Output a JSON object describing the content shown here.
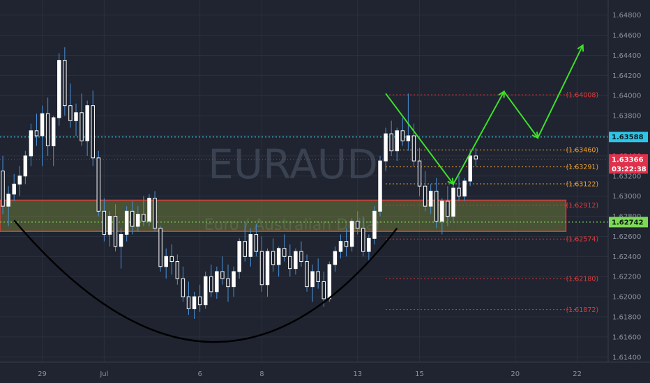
{
  "chart_data": {
    "type": "candlestick",
    "watermark": {
      "symbol": "EURAUD",
      "name": "Euro / Australian Dollar"
    },
    "y_axis": {
      "range": [
        1.6135,
        1.6495
      ],
      "ticks": [
        "1.64800",
        "1.64600",
        "1.64400",
        "1.64200",
        "1.64000",
        "1.63800",
        "1.63600",
        "1.63400",
        "1.63200",
        "1.63000",
        "1.62800",
        "1.62600",
        "1.62400",
        "1.62200",
        "1.62000",
        "1.61800",
        "1.61600",
        "1.61400"
      ]
    },
    "x_axis": {
      "ticks": [
        {
          "label": "29",
          "bar": 7
        },
        {
          "label": "Jul",
          "bar": 18
        },
        {
          "label": "6",
          "bar": 35
        },
        {
          "label": "8",
          "bar": 46
        },
        {
          "label": "13",
          "bar": 63
        },
        {
          "label": "15",
          "bar": 74
        },
        {
          "label": "20",
          "bar": 91
        },
        {
          "label": "22",
          "bar": 102
        }
      ]
    },
    "bars_total_slots": 108,
    "candles": [
      [
        1.6325,
        1.634,
        1.6282,
        1.629
      ],
      [
        1.629,
        1.631,
        1.627,
        1.6302
      ],
      [
        1.6302,
        1.6322,
        1.6295,
        1.6312
      ],
      [
        1.6312,
        1.633,
        1.63,
        1.632
      ],
      [
        1.632,
        1.6345,
        1.6312,
        1.634
      ],
      [
        1.634,
        1.6372,
        1.633,
        1.6365
      ],
      [
        1.6365,
        1.6382,
        1.635,
        1.636
      ],
      [
        1.636,
        1.639,
        1.633,
        1.6382
      ],
      [
        1.6382,
        1.6398,
        1.634,
        1.635
      ],
      [
        1.635,
        1.638,
        1.633,
        1.6378
      ],
      [
        1.6378,
        1.6442,
        1.637,
        1.6435
      ],
      [
        1.6435,
        1.6448,
        1.638,
        1.639
      ],
      [
        1.639,
        1.6412,
        1.6368,
        1.6375
      ],
      [
        1.6375,
        1.6392,
        1.636,
        1.6383
      ],
      [
        1.6383,
        1.6402,
        1.635,
        1.6355
      ],
      [
        1.6355,
        1.6395,
        1.634,
        1.639
      ],
      [
        1.639,
        1.6405,
        1.633,
        1.6338
      ],
      [
        1.6338,
        1.6345,
        1.628,
        1.6285
      ],
      [
        1.6285,
        1.6298,
        1.6255,
        1.6262
      ],
      [
        1.6262,
        1.6285,
        1.625,
        1.628
      ],
      [
        1.628,
        1.6292,
        1.6245,
        1.625
      ],
      [
        1.625,
        1.6268,
        1.6228,
        1.6262
      ],
      [
        1.6262,
        1.629,
        1.6255,
        1.6285
      ],
      [
        1.6285,
        1.6295,
        1.6262,
        1.627
      ],
      [
        1.627,
        1.629,
        1.6265,
        1.6282
      ],
      [
        1.6282,
        1.63,
        1.627,
        1.6275
      ],
      [
        1.6275,
        1.6302,
        1.627,
        1.6298
      ],
      [
        1.6298,
        1.6305,
        1.6265,
        1.6268
      ],
      [
        1.6268,
        1.627,
        1.6225,
        1.623
      ],
      [
        1.623,
        1.6248,
        1.6218,
        1.624
      ],
      [
        1.624,
        1.6252,
        1.6222,
        1.6235
      ],
      [
        1.6235,
        1.6242,
        1.6212,
        1.6218
      ],
      [
        1.6218,
        1.623,
        1.6195,
        1.62
      ],
      [
        1.62,
        1.6215,
        1.6182,
        1.6188
      ],
      [
        1.6188,
        1.6205,
        1.6178,
        1.62
      ],
      [
        1.62,
        1.6212,
        1.6185,
        1.6192
      ],
      [
        1.6192,
        1.6225,
        1.6188,
        1.622
      ],
      [
        1.622,
        1.6232,
        1.62,
        1.6205
      ],
      [
        1.6205,
        1.623,
        1.6198,
        1.6225
      ],
      [
        1.6225,
        1.624,
        1.6212,
        1.6218
      ],
      [
        1.6218,
        1.6232,
        1.6195,
        1.621
      ],
      [
        1.621,
        1.623,
        1.62,
        1.6225
      ],
      [
        1.6225,
        1.6258,
        1.6218,
        1.6255
      ],
      [
        1.6255,
        1.6275,
        1.6235,
        1.624
      ],
      [
        1.624,
        1.6268,
        1.623,
        1.6262
      ],
      [
        1.6262,
        1.6272,
        1.624,
        1.6245
      ],
      [
        1.6245,
        1.626,
        1.6205,
        1.6212
      ],
      [
        1.6212,
        1.6248,
        1.62,
        1.6245
      ],
      [
        1.6245,
        1.6258,
        1.6225,
        1.6232
      ],
      [
        1.6232,
        1.625,
        1.622,
        1.6248
      ],
      [
        1.6248,
        1.6262,
        1.6235,
        1.624
      ],
      [
        1.624,
        1.6252,
        1.622,
        1.6228
      ],
      [
        1.6228,
        1.6248,
        1.6222,
        1.6245
      ],
      [
        1.6245,
        1.6255,
        1.623,
        1.6235
      ],
      [
        1.6235,
        1.6242,
        1.6205,
        1.621
      ],
      [
        1.621,
        1.6232,
        1.6195,
        1.6225
      ],
      [
        1.6225,
        1.6238,
        1.6208,
        1.6215
      ],
      [
        1.6215,
        1.6225,
        1.619,
        1.6198
      ],
      [
        1.6198,
        1.6235,
        1.6195,
        1.6232
      ],
      [
        1.6232,
        1.625,
        1.6225,
        1.6245
      ],
      [
        1.6245,
        1.6262,
        1.6238,
        1.6255
      ],
      [
        1.6255,
        1.6268,
        1.624,
        1.625
      ],
      [
        1.625,
        1.6278,
        1.6245,
        1.6275
      ],
      [
        1.6275,
        1.6285,
        1.6262,
        1.6268
      ],
      [
        1.6268,
        1.628,
        1.624,
        1.6245
      ],
      [
        1.6245,
        1.6262,
        1.6235,
        1.6258
      ],
      [
        1.6258,
        1.629,
        1.6252,
        1.6285
      ],
      [
        1.6285,
        1.634,
        1.628,
        1.6335
      ],
      [
        1.6335,
        1.6368,
        1.6325,
        1.6362
      ],
      [
        1.6362,
        1.6375,
        1.634,
        1.6345
      ],
      [
        1.6345,
        1.6368,
        1.6335,
        1.6365
      ],
      [
        1.6365,
        1.6378,
        1.635,
        1.6355
      ],
      [
        1.6355,
        1.6402,
        1.6345,
        1.636
      ],
      [
        1.636,
        1.6372,
        1.633,
        1.6335
      ],
      [
        1.6335,
        1.6348,
        1.63,
        1.631
      ],
      [
        1.631,
        1.6325,
        1.6285,
        1.629
      ],
      [
        1.629,
        1.6312,
        1.6282,
        1.6305
      ],
      [
        1.6305,
        1.6318,
        1.6268,
        1.6275
      ],
      [
        1.6275,
        1.6298,
        1.6262,
        1.6295
      ],
      [
        1.6295,
        1.631,
        1.627,
        1.628
      ],
      [
        1.628,
        1.6312,
        1.6275,
        1.6308
      ],
      [
        1.6308,
        1.632,
        1.6295,
        1.63
      ],
      [
        1.63,
        1.6318,
        1.6295,
        1.6315
      ],
      [
        1.6315,
        1.6345,
        1.631,
        1.634
      ],
      [
        1.634,
        1.6348,
        1.633,
        1.6337
      ]
    ],
    "levels": [
      {
        "label": "1.64008",
        "price": 1.64008,
        "color": "#e03b3b"
      },
      {
        "label": "1.63460",
        "price": 1.6346,
        "color": "#f0a030"
      },
      {
        "label": "1.63291",
        "price": 1.63291,
        "color": "#f0a030"
      },
      {
        "label": "1.63122",
        "price": 1.63122,
        "color": "#f0a030"
      },
      {
        "label": "1.62912",
        "price": 1.62912,
        "color": "#e03b3b"
      },
      {
        "label": "1.62574",
        "price": 1.62574,
        "color": "#e03b3b"
      },
      {
        "label": "1.62180",
        "price": 1.6218,
        "color": "#e03b3b"
      },
      {
        "label": "1.61872",
        "price": 1.61872,
        "color": "#e03b3b"
      }
    ],
    "resistance_line": {
      "price": 1.63588,
      "label": "1.63588",
      "color": "#2ec4e6"
    },
    "support_line": {
      "price": 1.62742,
      "label": "1.62742",
      "color": "#7ed957"
    },
    "current_price": {
      "price": 1.63366,
      "label": "1.63366",
      "timer": "03:22:38",
      "color": "#e0304a"
    },
    "support_zone": {
      "top": 1.6296,
      "bottom": 1.6265
    },
    "cup_curve": {
      "start": [
        2,
        1.6276
      ],
      "bottom": [
        37,
        1.6155
      ],
      "end": [
        70,
        1.6268
      ]
    },
    "projection": [
      [
        68,
        1.6402
      ],
      [
        80,
        1.6312
      ],
      [
        89,
        1.6404
      ],
      [
        95,
        1.6358
      ],
      [
        103,
        1.645
      ]
    ],
    "colors": {
      "up": "#ffffff",
      "down": "#ffffff",
      "wick": "#4a90d9",
      "background": "#1f2430",
      "grid": "#2a303c"
    }
  }
}
